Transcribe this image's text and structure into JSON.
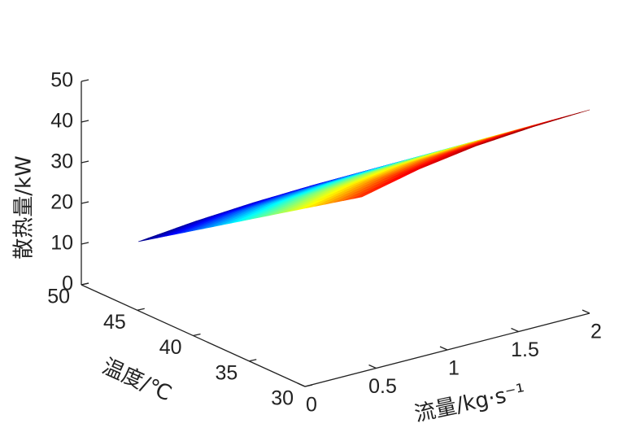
{
  "chart_data": {
    "type": "surface3d",
    "x_label": "流量/kg·s⁻¹",
    "y_label": "温度/℃",
    "z_label": "散热量/kW",
    "x": [
      0.4,
      0.8,
      1.2,
      1.6,
      2.0
    ],
    "y": [
      30,
      35,
      40,
      45,
      50
    ],
    "z": [
      [
        43,
        46.2,
        48.3,
        49.4,
        50
      ],
      [
        34,
        36.7,
        38.5,
        39.5,
        40
      ],
      [
        25,
        27.3,
        28.8,
        29.6,
        30
      ],
      [
        16,
        17.8,
        19,
        19.7,
        20
      ],
      [
        7,
        8.4,
        9.3,
        9.8,
        10
      ]
    ],
    "colormap": "jet",
    "xlim": [
      0,
      2
    ],
    "xticks": [
      0,
      0.5,
      1,
      1.5,
      2
    ],
    "ylim": [
      30,
      50
    ],
    "yticks": [
      30,
      35,
      40,
      45,
      50
    ],
    "zlim": [
      0,
      50
    ],
    "zticks": [
      0,
      10,
      20,
      30,
      40,
      50
    ]
  }
}
